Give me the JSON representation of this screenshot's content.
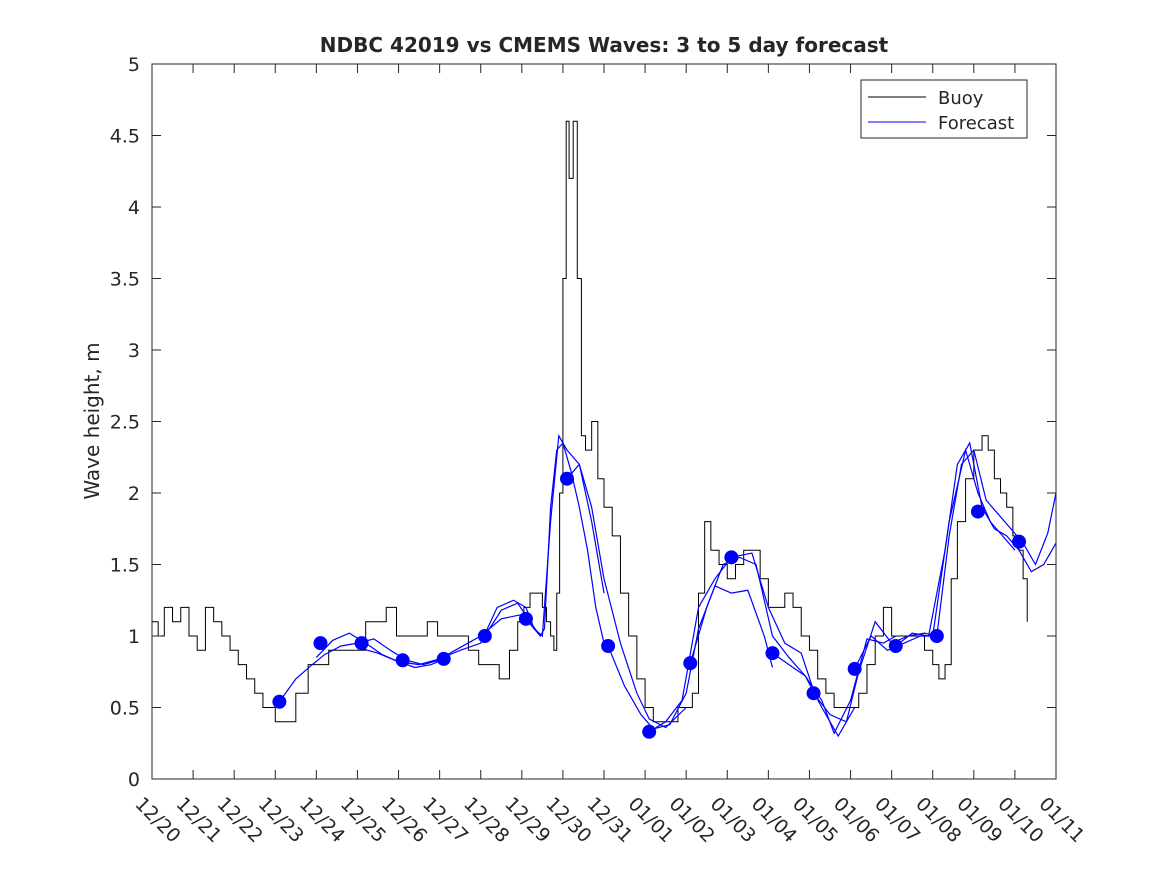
{
  "chart_data": {
    "type": "line",
    "title": "NDBC 42019 vs CMEMS Waves: 3 to 5 day forecast",
    "xlabel": "",
    "ylabel": "Wave height, m",
    "xlim": [
      0,
      22
    ],
    "ylim": [
      0,
      5
    ],
    "grid": false,
    "legend_position": "top-right",
    "x_ticks": [
      {
        "x": 0,
        "label": "12/20"
      },
      {
        "x": 1,
        "label": "12/21"
      },
      {
        "x": 2,
        "label": "12/22"
      },
      {
        "x": 3,
        "label": "12/23"
      },
      {
        "x": 4,
        "label": "12/24"
      },
      {
        "x": 5,
        "label": "12/25"
      },
      {
        "x": 6,
        "label": "12/26"
      },
      {
        "x": 7,
        "label": "12/27"
      },
      {
        "x": 8,
        "label": "12/28"
      },
      {
        "x": 9,
        "label": "12/29"
      },
      {
        "x": 10,
        "label": "12/30"
      },
      {
        "x": 11,
        "label": "12/31"
      },
      {
        "x": 12,
        "label": "01/01"
      },
      {
        "x": 13,
        "label": "01/02"
      },
      {
        "x": 14,
        "label": "01/03"
      },
      {
        "x": 15,
        "label": "01/04"
      },
      {
        "x": 16,
        "label": "01/05"
      },
      {
        "x": 17,
        "label": "01/06"
      },
      {
        "x": 18,
        "label": "01/07"
      },
      {
        "x": 19,
        "label": "01/08"
      },
      {
        "x": 20,
        "label": "01/09"
      },
      {
        "x": 21,
        "label": "01/10"
      },
      {
        "x": 22,
        "label": "01/11"
      }
    ],
    "y_ticks": [
      {
        "y": 0,
        "label": "0"
      },
      {
        "y": 0.5,
        "label": "0.5"
      },
      {
        "y": 1,
        "label": "1"
      },
      {
        "y": 1.5,
        "label": "1.5"
      },
      {
        "y": 2,
        "label": "2"
      },
      {
        "y": 2.5,
        "label": "2.5"
      },
      {
        "y": 3,
        "label": "3"
      },
      {
        "y": 3.5,
        "label": "3.5"
      },
      {
        "y": 4,
        "label": "4"
      },
      {
        "y": 4.5,
        "label": "4.5"
      },
      {
        "y": 5,
        "label": "5"
      }
    ],
    "series": [
      {
        "name": "Buoy",
        "color": "#000000",
        "x": [
          0,
          0.15,
          0.3,
          0.5,
          0.7,
          0.9,
          1.1,
          1.3,
          1.5,
          1.7,
          1.9,
          2.1,
          2.3,
          2.5,
          2.7,
          2.9,
          3.0,
          3.2,
          3.5,
          3.8,
          4.0,
          4.3,
          4.6,
          4.9,
          5.2,
          5.45,
          5.7,
          5.95,
          6.2,
          6.45,
          6.7,
          6.95,
          7.2,
          7.45,
          7.7,
          7.95,
          8.2,
          8.45,
          8.7,
          8.9,
          9.05,
          9.2,
          9.35,
          9.5,
          9.6,
          9.7,
          9.78,
          9.85,
          9.92,
          10.0,
          10.08,
          10.15,
          10.25,
          10.35,
          10.45,
          10.55,
          10.7,
          10.85,
          11.0,
          11.2,
          11.4,
          11.6,
          11.8,
          12.0,
          12.2,
          12.4,
          12.6,
          12.8,
          13.0,
          13.15,
          13.3,
          13.45,
          13.6,
          13.8,
          14.0,
          14.2,
          14.4,
          14.6,
          14.8,
          15.0,
          15.2,
          15.4,
          15.6,
          15.8,
          16.0,
          16.2,
          16.4,
          16.6,
          16.8,
          17.0,
          17.2,
          17.4,
          17.6,
          17.8,
          18.0,
          18.2,
          18.4,
          18.6,
          18.8,
          19.0,
          19.15,
          19.3,
          19.45,
          19.6,
          19.8,
          20.0,
          20.2,
          20.35,
          20.5,
          20.65,
          20.8,
          20.95,
          21.1,
          21.2,
          21.3
        ],
        "values": [
          1.1,
          1.0,
          1.2,
          1.1,
          1.2,
          1.0,
          0.9,
          1.2,
          1.1,
          1.0,
          0.9,
          0.8,
          0.7,
          0.6,
          0.5,
          0.5,
          0.4,
          0.4,
          0.6,
          0.8,
          0.8,
          0.9,
          0.9,
          0.9,
          1.1,
          1.1,
          1.2,
          1.0,
          1.0,
          1.0,
          1.1,
          1.0,
          1.0,
          1.0,
          0.9,
          0.8,
          0.8,
          0.7,
          0.9,
          1.1,
          1.2,
          1.3,
          1.3,
          1.2,
          1.1,
          1.0,
          0.9,
          1.3,
          2.0,
          3.5,
          4.6,
          4.2,
          4.6,
          3.5,
          2.4,
          2.3,
          2.5,
          2.1,
          1.9,
          1.7,
          1.3,
          1.0,
          0.7,
          0.5,
          0.4,
          0.4,
          0.4,
          0.5,
          0.5,
          0.6,
          1.3,
          1.8,
          1.6,
          1.5,
          1.4,
          1.5,
          1.6,
          1.6,
          1.4,
          1.2,
          1.2,
          1.3,
          1.2,
          1.0,
          0.9,
          0.7,
          0.6,
          0.5,
          0.5,
          0.5,
          0.6,
          0.8,
          1.0,
          1.2,
          1.0,
          1.0,
          1.0,
          1.0,
          0.9,
          0.8,
          0.7,
          0.8,
          1.4,
          1.8,
          2.1,
          2.3,
          2.4,
          2.3,
          2.1,
          2.0,
          1.9,
          1.7,
          1.6,
          1.4,
          1.1
        ]
      },
      {
        "name": "Forecast",
        "color": "#0000ff",
        "segments": [
          {
            "x": [
              3.1,
              3.5,
              3.9,
              4.2,
              4.6,
              5.0,
              5.4,
              5.8,
              6.2,
              6.6,
              7.1
            ],
            "values": [
              0.54,
              0.7,
              0.8,
              0.87,
              0.93,
              0.95,
              0.98,
              0.9,
              0.83,
              0.8,
              0.84
            ]
          },
          {
            "x": [
              4.0,
              4.4,
              4.8,
              5.2,
              5.6,
              6.0,
              6.4,
              6.8,
              7.2
            ],
            "values": [
              0.85,
              0.97,
              1.02,
              0.95,
              0.87,
              0.82,
              0.78,
              0.8,
              0.85
            ]
          },
          {
            "x": [
              5.0,
              5.5,
              6.0,
              6.5,
              7.0,
              7.5,
              8.0,
              8.5,
              9.0
            ],
            "values": [
              0.92,
              0.88,
              0.82,
              0.8,
              0.84,
              0.92,
              1.0,
              1.12,
              1.15
            ]
          },
          {
            "x": [
              7.0,
              7.5,
              8.0,
              8.4,
              8.8,
              9.1,
              9.3,
              9.45,
              9.55,
              9.7,
              9.85,
              10.0,
              10.2,
              10.4,
              10.6,
              10.8,
              11.0
            ],
            "values": [
              0.84,
              0.9,
              0.95,
              1.2,
              1.25,
              1.2,
              1.05,
              1.0,
              1.05,
              1.9,
              2.3,
              2.35,
              2.15,
              1.9,
              1.6,
              1.2,
              0.95
            ]
          },
          {
            "x": [
              8.1,
              8.5,
              8.9,
              9.2,
              9.45
            ],
            "values": [
              1.0,
              1.18,
              1.23,
              1.1,
              1.0
            ]
          },
          {
            "x": [
              9.1,
              9.3,
              9.5,
              9.7,
              9.9,
              10.1,
              10.4,
              10.7,
              11.0
            ],
            "values": [
              1.12,
              1.05,
              1.0,
              1.8,
              2.4,
              2.3,
              2.2,
              1.8,
              1.3
            ]
          },
          {
            "x": [
              10.1,
              10.4,
              10.7,
              11.0,
              11.4,
              11.8,
              12.1,
              12.5,
              13.0
            ],
            "values": [
              2.1,
              2.2,
              1.9,
              1.4,
              0.95,
              0.6,
              0.42,
              0.36,
              0.5
            ]
          },
          {
            "x": [
              11.1,
              11.5,
              11.9,
              12.2,
              12.6,
              13.0,
              13.3,
              13.7,
              14.1,
              14.5,
              14.9,
              15.1
            ],
            "values": [
              0.93,
              0.65,
              0.45,
              0.35,
              0.38,
              0.6,
              1.05,
              1.35,
              1.3,
              1.32,
              1.0,
              0.78
            ]
          },
          {
            "x": [
              12.1,
              12.5,
              12.9,
              13.3,
              13.7,
              14.1,
              14.6,
              15.0,
              15.4,
              15.8,
              16.1
            ],
            "values": [
              0.33,
              0.4,
              0.55,
              1.2,
              1.4,
              1.55,
              1.58,
              1.2,
              0.95,
              0.88,
              0.62
            ]
          },
          {
            "x": [
              13.1,
              13.5,
              13.9,
              14.3,
              14.7,
              15.1,
              15.5,
              15.9,
              16.3,
              16.7,
              17.1
            ],
            "values": [
              0.81,
              1.2,
              1.5,
              1.55,
              1.5,
              1.0,
              0.85,
              0.72,
              0.5,
              0.3,
              0.5
            ]
          },
          {
            "x": [
              15.1,
              15.5,
              15.9,
              16.3,
              16.6,
              17.0,
              17.4,
              17.8,
              18.1
            ],
            "values": [
              0.88,
              0.8,
              0.72,
              0.55,
              0.32,
              0.55,
              0.98,
              0.95,
              1.0
            ]
          },
          {
            "x": [
              16.1,
              16.5,
              16.9,
              17.2,
              17.6,
              18.0,
              18.4,
              18.8,
              19.1
            ],
            "values": [
              0.6,
              0.45,
              0.4,
              0.75,
              1.1,
              0.95,
              1.0,
              1.02,
              1.0
            ]
          },
          {
            "x": [
              17.1,
              17.5,
              17.9,
              18.3,
              18.7,
              19.0,
              19.4,
              19.8,
              20.1,
              20.4,
              20.7,
              21.0
            ],
            "values": [
              0.77,
              1.0,
              0.9,
              0.95,
              1.0,
              1.0,
              1.8,
              2.3,
              2.0,
              1.8,
              1.7,
              1.6
            ]
          },
          {
            "x": [
              18.1,
              18.5,
              18.9,
              19.3,
              19.6,
              19.9,
              20.2,
              20.5,
              20.8,
              21.1,
              21.4,
              21.7,
              22.0
            ],
            "values": [
              0.93,
              1.02,
              1.0,
              1.6,
              2.2,
              2.35,
              1.9,
              1.75,
              1.7,
              1.6,
              1.45,
              1.5,
              1.65
            ]
          },
          {
            "x": [
              19.1,
              19.4,
              19.7,
              20.0,
              20.3,
              20.6,
              20.9,
              21.2,
              21.5,
              21.8,
              22.0
            ],
            "values": [
              1.0,
              1.7,
              2.2,
              2.3,
              1.95,
              1.85,
              1.75,
              1.65,
              1.5,
              1.72,
              2.0
            ]
          }
        ]
      },
      {
        "name": "Forecast points",
        "color": "#0000ff",
        "x": [
          3.1,
          4.1,
          5.1,
          6.1,
          7.1,
          8.1,
          9.1,
          10.1,
          11.1,
          12.1,
          13.1,
          14.1,
          15.1,
          16.1,
          17.1,
          18.1,
          19.1,
          20.1,
          21.1
        ],
        "values": [
          0.54,
          0.95,
          0.95,
          0.83,
          0.84,
          1.0,
          1.12,
          2.1,
          0.93,
          0.33,
          0.81,
          1.55,
          0.88,
          0.6,
          0.77,
          0.93,
          1.0,
          1.87,
          1.66
        ]
      }
    ]
  },
  "legend": {
    "items": [
      {
        "label": "Buoy",
        "color": "#000000"
      },
      {
        "label": "Forecast",
        "color": "#0000ff"
      }
    ]
  }
}
